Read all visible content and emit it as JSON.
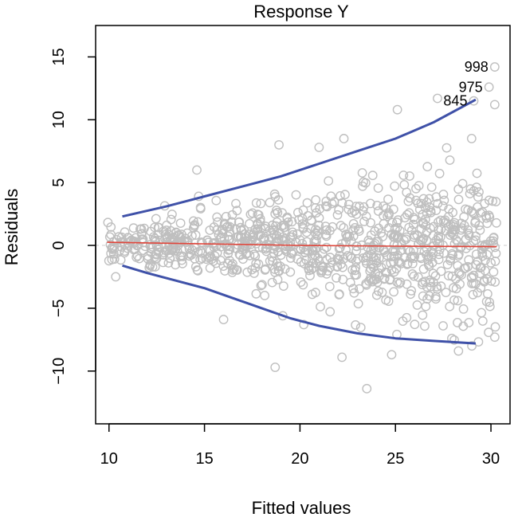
{
  "chart_data": {
    "type": "scatter",
    "title": "Response Y",
    "xlabel": "Fitted values",
    "ylabel": "Residuals",
    "xlim": [
      9.3,
      31.0
    ],
    "ylim": [
      -14.2,
      17.5
    ],
    "xticks": [
      10,
      15,
      20,
      25,
      30
    ],
    "yticks": [
      -10,
      -5,
      0,
      5,
      10,
      15
    ],
    "xtick_labels": [
      "10",
      "15",
      "20",
      "25",
      "30"
    ],
    "ytick_labels": [
      "−10",
      "−5",
      "0",
      "5",
      "10",
      "15"
    ],
    "zero_line": 0,
    "point_color": "#bfbfbf",
    "upper_curve_color": "#3f51a8",
    "lower_curve_color": "#3f51a8",
    "smoother_color": "#e0453a",
    "upper_curve": {
      "x": [
        10.7,
        13,
        15,
        17,
        19,
        21,
        23,
        25,
        27,
        29.2
      ],
      "y": [
        2.3,
        3.1,
        3.9,
        4.7,
        5.5,
        6.5,
        7.5,
        8.5,
        9.8,
        11.6
      ]
    },
    "lower_curve": {
      "x": [
        10.7,
        12,
        13.5,
        15,
        16.5,
        18,
        19.5,
        21,
        23,
        25,
        27,
        29.2
      ],
      "y": [
        -1.6,
        -2.2,
        -2.8,
        -3.4,
        -4.2,
        -5.0,
        -5.8,
        -6.4,
        -7.0,
        -7.4,
        -7.6,
        -7.8
      ]
    },
    "smoother": {
      "x": [
        9.9,
        15,
        20,
        25,
        30.3
      ],
      "y": [
        0.25,
        0.12,
        0.0,
        -0.06,
        -0.1
      ]
    },
    "labeled_points": [
      {
        "label": "998",
        "x": 30.2,
        "y": 14.2
      },
      {
        "label": "975",
        "x": 29.9,
        "y": 12.6
      },
      {
        "label": "845",
        "x": 29.1,
        "y": 11.5
      }
    ],
    "extreme_points": [
      {
        "x": 30.2,
        "y": 14.2
      },
      {
        "x": 29.9,
        "y": 12.6
      },
      {
        "x": 29.1,
        "y": 11.5
      },
      {
        "x": 27.2,
        "y": 11.7
      },
      {
        "x": 25.1,
        "y": 10.8
      },
      {
        "x": 30.2,
        "y": 11.2
      },
      {
        "x": 18.9,
        "y": 8.0
      },
      {
        "x": 21.0,
        "y": 7.8
      },
      {
        "x": 22.3,
        "y": 8.5
      },
      {
        "x": 14.6,
        "y": 6.0
      },
      {
        "x": 23.5,
        "y": -11.4
      },
      {
        "x": 18.7,
        "y": -9.7
      },
      {
        "x": 16.0,
        "y": -5.9
      },
      {
        "x": 22.2,
        "y": -8.9
      },
      {
        "x": 24.8,
        "y": -8.7
      },
      {
        "x": 28.3,
        "y": -8.4
      },
      {
        "x": 29.0,
        "y": -8.0
      },
      {
        "x": 30.2,
        "y": -7.3
      },
      {
        "x": 19.1,
        "y": -5.6
      },
      {
        "x": 20.2,
        "y": -6.3
      }
    ],
    "n_points": 1000
  }
}
